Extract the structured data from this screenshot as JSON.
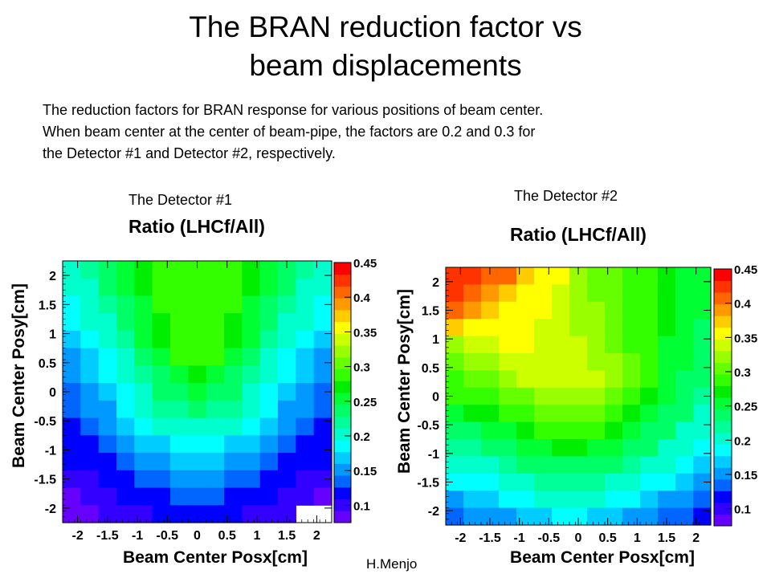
{
  "slide": {
    "title_line1": "The BRAN reduction factor vs",
    "title_line2": "beam displacements",
    "description": [
      "The reduction factors for BRAN response for various positions of beam center.",
      "When beam center at the center of beam-pipe, the factors are 0.2 and 0.3 for",
      "the Detector #1 and Detector #2, respectively."
    ],
    "detector1_label": "The Detector #1",
    "detector2_label": "The Detector #2",
    "author": "H.Menjo"
  },
  "chart_data": [
    {
      "type": "heatmap",
      "title": "Ratio (LHCf/All)",
      "xlabel": "Beam Center Posx[cm]",
      "ylabel": "Beam Center Posy[cm]",
      "xlim": [
        -2.25,
        2.25
      ],
      "ylim": [
        -2.25,
        2.25
      ],
      "x_ticks": [
        "-2",
        "-1.5",
        "-1",
        "-0.5",
        "0",
        "0.5",
        "1",
        "1.5",
        "2"
      ],
      "y_ticks": [
        "-2",
        "-1.5",
        "-1",
        "-0.5",
        "0",
        "0.5",
        "1",
        "1.5",
        "2"
      ],
      "x_centers": [
        -2.1,
        -1.8,
        -1.5,
        -1.2,
        -0.9,
        -0.6,
        -0.3,
        0,
        0.3,
        0.6,
        0.9,
        1.2,
        1.5,
        1.8,
        2.1
      ],
      "y_centers": [
        2.1,
        1.8,
        1.5,
        1.2,
        0.9,
        0.6,
        0.3,
        0,
        -0.3,
        -0.6,
        -0.9,
        -1.2,
        -1.5,
        -1.8,
        -2.1
      ],
      "zlim": [
        0.075,
        0.45
      ],
      "colorbar_ticks": [
        "0.1",
        "0.15",
        "0.2",
        "0.25",
        "0.3",
        "0.35",
        "0.4",
        "0.45"
      ],
      "cells": [
        [
          0.21,
          0.22,
          0.24,
          0.26,
          0.27,
          0.28,
          0.285,
          0.29,
          0.285,
          0.28,
          0.27,
          0.26,
          0.24,
          0.22,
          0.21
        ],
        [
          0.2,
          0.21,
          0.23,
          0.25,
          0.27,
          0.28,
          0.285,
          0.29,
          0.285,
          0.28,
          0.27,
          0.25,
          0.23,
          0.21,
          0.2
        ],
        [
          0.19,
          0.2,
          0.22,
          0.24,
          0.26,
          0.28,
          0.285,
          0.29,
          0.285,
          0.28,
          0.26,
          0.24,
          0.22,
          0.2,
          0.19
        ],
        [
          0.18,
          0.195,
          0.21,
          0.23,
          0.25,
          0.27,
          0.285,
          0.29,
          0.285,
          0.27,
          0.25,
          0.23,
          0.21,
          0.195,
          0.18
        ],
        [
          0.17,
          0.185,
          0.2,
          0.22,
          0.25,
          0.27,
          0.285,
          0.29,
          0.285,
          0.27,
          0.25,
          0.22,
          0.2,
          0.185,
          0.17
        ],
        [
          0.16,
          0.175,
          0.19,
          0.21,
          0.24,
          0.26,
          0.28,
          0.29,
          0.28,
          0.26,
          0.24,
          0.21,
          0.19,
          0.175,
          0.16
        ],
        [
          0.15,
          0.165,
          0.18,
          0.2,
          0.225,
          0.24,
          0.26,
          0.27,
          0.26,
          0.24,
          0.225,
          0.2,
          0.18,
          0.165,
          0.15
        ],
        [
          0.14,
          0.155,
          0.17,
          0.19,
          0.21,
          0.23,
          0.245,
          0.25,
          0.245,
          0.23,
          0.21,
          0.19,
          0.17,
          0.155,
          0.14
        ],
        [
          0.13,
          0.145,
          0.16,
          0.18,
          0.2,
          0.215,
          0.225,
          0.23,
          0.225,
          0.215,
          0.2,
          0.18,
          0.16,
          0.145,
          0.13
        ],
        [
          0.125,
          0.135,
          0.15,
          0.165,
          0.18,
          0.195,
          0.205,
          0.21,
          0.205,
          0.195,
          0.18,
          0.165,
          0.15,
          0.135,
          0.125
        ],
        [
          0.115,
          0.125,
          0.14,
          0.15,
          0.165,
          0.175,
          0.185,
          0.19,
          0.185,
          0.175,
          0.165,
          0.15,
          0.14,
          0.125,
          0.115
        ],
        [
          0.11,
          0.115,
          0.125,
          0.14,
          0.15,
          0.16,
          0.165,
          0.17,
          0.165,
          0.16,
          0.15,
          0.14,
          0.125,
          0.115,
          0.11
        ],
        [
          0.1,
          0.105,
          0.115,
          0.125,
          0.135,
          0.14,
          0.145,
          0.15,
          0.145,
          0.14,
          0.135,
          0.125,
          0.115,
          0.105,
          0.1
        ],
        [
          0.09,
          0.095,
          0.105,
          0.11,
          0.12,
          0.125,
          0.13,
          0.13,
          0.13,
          0.125,
          0.12,
          0.11,
          0.105,
          0.095,
          0.085
        ],
        [
          0.085,
          0.09,
          0.095,
          0.1,
          0.105,
          0.11,
          0.115,
          0.115,
          0.115,
          0.11,
          0.105,
          0.1,
          0.095,
          null,
          null
        ]
      ]
    },
    {
      "type": "heatmap",
      "title": "Ratio (LHCf/All)",
      "xlabel": "Beam Center Posx[cm]",
      "ylabel": "Beam Center Posy[cm]",
      "xlim": [
        -2.25,
        2.25
      ],
      "ylim": [
        -2.25,
        2.25
      ],
      "x_ticks": [
        "-2",
        "-1.5",
        "-1",
        "-0.5",
        "0",
        "0.5",
        "1",
        "1.5",
        "2"
      ],
      "y_ticks": [
        "-2",
        "-1.5",
        "-1",
        "-0.5",
        "0",
        "0.5",
        "1",
        "1.5",
        "2"
      ],
      "x_centers": [
        -2.1,
        -1.8,
        -1.5,
        -1.2,
        -0.9,
        -0.6,
        -0.3,
        0,
        0.3,
        0.6,
        0.9,
        1.2,
        1.5,
        1.8,
        2.1
      ],
      "y_centers": [
        2.1,
        1.8,
        1.5,
        1.2,
        0.9,
        0.6,
        0.3,
        0,
        -0.3,
        -0.6,
        -0.9,
        -1.2,
        -1.5,
        -1.8,
        -2.1
      ],
      "zlim": [
        0.075,
        0.45
      ],
      "colorbar_ticks": [
        "0.1",
        "0.15",
        "0.2",
        "0.25",
        "0.3",
        "0.35",
        "0.4",
        "0.45"
      ],
      "cells": [
        [
          0.43,
          0.42,
          0.41,
          0.4,
          0.38,
          0.36,
          0.35,
          0.33,
          0.31,
          0.3,
          0.29,
          0.28,
          0.27,
          0.26,
          0.25
        ],
        [
          0.42,
          0.41,
          0.39,
          0.38,
          0.36,
          0.35,
          0.34,
          0.33,
          0.31,
          0.3,
          0.29,
          0.28,
          0.27,
          0.26,
          0.25
        ],
        [
          0.4,
          0.39,
          0.37,
          0.36,
          0.355,
          0.35,
          0.34,
          0.33,
          0.32,
          0.3,
          0.29,
          0.28,
          0.27,
          0.26,
          0.25
        ],
        [
          0.37,
          0.36,
          0.355,
          0.35,
          0.35,
          0.345,
          0.34,
          0.33,
          0.32,
          0.31,
          0.29,
          0.28,
          0.27,
          0.26,
          0.24
        ],
        [
          0.33,
          0.34,
          0.345,
          0.35,
          0.35,
          0.345,
          0.34,
          0.34,
          0.33,
          0.31,
          0.29,
          0.28,
          0.26,
          0.25,
          0.24
        ],
        [
          0.31,
          0.32,
          0.33,
          0.34,
          0.345,
          0.345,
          0.34,
          0.34,
          0.33,
          0.32,
          0.3,
          0.28,
          0.26,
          0.25,
          0.23
        ],
        [
          0.29,
          0.3,
          0.31,
          0.32,
          0.335,
          0.34,
          0.34,
          0.34,
          0.335,
          0.32,
          0.3,
          0.28,
          0.26,
          0.24,
          0.23
        ],
        [
          0.28,
          0.285,
          0.29,
          0.3,
          0.31,
          0.32,
          0.325,
          0.325,
          0.32,
          0.31,
          0.29,
          0.27,
          0.25,
          0.24,
          0.22
        ],
        [
          0.26,
          0.265,
          0.27,
          0.28,
          0.29,
          0.3,
          0.31,
          0.31,
          0.3,
          0.29,
          0.27,
          0.26,
          0.24,
          0.23,
          0.21
        ],
        [
          0.24,
          0.245,
          0.25,
          0.26,
          0.27,
          0.28,
          0.285,
          0.285,
          0.28,
          0.27,
          0.26,
          0.24,
          0.23,
          0.21,
          0.2
        ],
        [
          0.22,
          0.225,
          0.23,
          0.24,
          0.25,
          0.26,
          0.265,
          0.265,
          0.26,
          0.25,
          0.24,
          0.23,
          0.21,
          0.2,
          0.19
        ],
        [
          0.2,
          0.205,
          0.21,
          0.22,
          0.23,
          0.24,
          0.245,
          0.245,
          0.24,
          0.23,
          0.22,
          0.21,
          0.2,
          0.185,
          0.17
        ],
        [
          0.18,
          0.185,
          0.19,
          0.2,
          0.21,
          0.22,
          0.225,
          0.225,
          0.22,
          0.21,
          0.2,
          0.19,
          0.18,
          0.17,
          0.16
        ],
        [
          0.16,
          0.165,
          0.17,
          0.18,
          0.19,
          0.2,
          0.205,
          0.205,
          0.2,
          0.19,
          0.18,
          0.17,
          0.16,
          0.15,
          0.14
        ],
        [
          0.14,
          0.145,
          0.15,
          0.16,
          0.17,
          0.175,
          0.18,
          0.18,
          0.175,
          0.17,
          0.16,
          0.15,
          0.14,
          0.13,
          0.12
        ]
      ]
    }
  ]
}
